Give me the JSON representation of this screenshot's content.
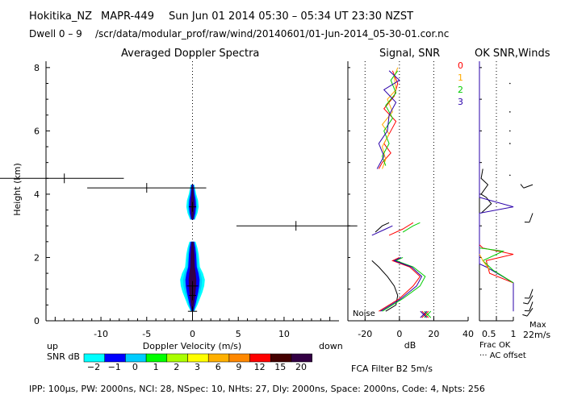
{
  "header": {
    "station": "Hokitika_NZ",
    "radar": "MAPR-449",
    "datetime": "Sun Jun 01 2014 05:30 – 05:34 UT 23:30 NZST",
    "dwell": "Dwell  0 – 9",
    "path": "/scr/data/modular_prof/raw/wind/20140601/01-Jun-2014_05-30-01.cor.nc"
  },
  "footer": "IPP: 100μs,  PW: 2000ns,  NCI: 28,  NSpec: 10, NHts: 27,  Dly: 2000ns,  Space: 2000ns,  Code: 4,  Npts: 256",
  "colors": {
    "snr_minus2": "#00ffff",
    "snr_minus1": "#0000ff",
    "snr_0": "#00ccff",
    "snr_1": "#00ff00",
    "snr_2": "#aaff00",
    "snr_3": "#ffff00",
    "snr_6": "#ffb000",
    "snr_9": "#ff8800",
    "snr_12": "#ff0000",
    "snr_15": "#440000",
    "snr_20": "#330044",
    "beam0": "#ff0000",
    "beam1": "#ffaa00",
    "beam2": "#00cc00",
    "beam3": "#2a00aa",
    "black": "#000000"
  },
  "chart_data": [
    {
      "type": "heatmap",
      "name": "spectra",
      "title": "Averaged Doppler Spectra",
      "xlabel": "Doppler Velocity (m/s)",
      "ylabel": "Height (km)",
      "xlim": [
        -16,
        16
      ],
      "ylim": [
        0,
        8.2
      ],
      "xticks": [
        -10,
        -5,
        0,
        5,
        10
      ],
      "yticks": [
        0,
        2,
        4,
        6,
        8
      ],
      "dir_left": "up",
      "dir_right": "down",
      "colorbar_label": "SNR dB",
      "colorbar_ticks": [
        "−2",
        "−1",
        "0",
        "1",
        "2",
        "3",
        "6",
        "9",
        "12",
        "15",
        "20"
      ],
      "echo_profile": [
        {
          "h": 0.3,
          "w": 0.3
        },
        {
          "h": 0.5,
          "w": 0.8
        },
        {
          "h": 0.7,
          "w": 1.2
        },
        {
          "h": 0.9,
          "w": 1.6
        },
        {
          "h": 1.1,
          "w": 1.9
        },
        {
          "h": 1.3,
          "w": 2.0
        },
        {
          "h": 1.5,
          "w": 1.7
        },
        {
          "h": 1.7,
          "w": 1.2
        },
        {
          "h": 1.9,
          "w": 1.1
        },
        {
          "h": 2.1,
          "w": 1.0
        },
        {
          "h": 2.3,
          "w": 0.8
        },
        {
          "h": 2.5,
          "w": 0.5
        }
      ],
      "upper_echo": [
        {
          "h": 3.2,
          "w": 0.4
        },
        {
          "h": 3.4,
          "w": 0.8
        },
        {
          "h": 3.6,
          "w": 1.0
        },
        {
          "h": 3.8,
          "w": 0.9
        },
        {
          "h": 4.0,
          "w": 0.6
        },
        {
          "h": 4.3,
          "w": 0.3
        }
      ],
      "moments": [
        {
          "h": 4.5,
          "center": -14,
          "left": -26,
          "right": -7.5
        },
        {
          "h": 4.2,
          "center": -5,
          "left": -11.5,
          "right": 1.5
        },
        {
          "h": 3.0,
          "center": 11.3,
          "left": 4.8,
          "right": 18
        },
        {
          "h": 3.6,
          "center": 0,
          "left": -0.4,
          "right": 0.4
        },
        {
          "h": 1.1,
          "center": 0,
          "left": -0.6,
          "right": 0.6
        },
        {
          "h": 0.8,
          "center": 0,
          "left": -0.4,
          "right": 0.4
        },
        {
          "h": 0.3,
          "center": 0,
          "left": -0.5,
          "right": 0.5
        }
      ]
    },
    {
      "type": "line",
      "name": "signal",
      "title": "Signal, SNR",
      "xlabel": "dB",
      "xlim": [
        -30,
        40
      ],
      "ylim": [
        0,
        8.2
      ],
      "xticks": [
        -20,
        0,
        20,
        40
      ],
      "noise_label": "Noise",
      "series": [
        {
          "name": "0",
          "color": "#ff0000",
          "h": [
            4.8,
            5.0,
            5.3,
            5.6,
            5.9,
            6.3,
            6.7,
            7.1,
            7.5,
            7.9
          ],
          "v": [
            -12,
            -10,
            -5,
            -9,
            -6,
            -2,
            -9,
            -3,
            -1,
            -4
          ]
        },
        {
          "name": "1",
          "color": "#ffaa00",
          "h": [
            4.8,
            5.1,
            5.5,
            5.9,
            6.2,
            6.6,
            7.0,
            7.3,
            7.7,
            8.0
          ],
          "v": [
            -10,
            -8,
            -10,
            -6,
            -10,
            -4,
            -7,
            -2,
            -3,
            -1
          ]
        },
        {
          "name": "2",
          "color": "#00cc00",
          "h": [
            4.9,
            5.2,
            5.6,
            6.0,
            6.4,
            6.8,
            7.2,
            7.6,
            7.9
          ],
          "v": [
            -8,
            -10,
            -6,
            -9,
            -4,
            -8,
            -2,
            -5,
            -1
          ]
        },
        {
          "name": "3",
          "color": "#2a00aa",
          "h": [
            4.8,
            5.2,
            5.6,
            6.0,
            6.5,
            6.9,
            7.3,
            7.6,
            7.9
          ],
          "v": [
            -13,
            -9,
            -12,
            -7,
            -6,
            -2,
            -9,
            0,
            -6
          ]
        },
        {
          "name": "noise",
          "color": "#000000",
          "h": [
            0.3,
            0.5,
            0.8,
            1.1,
            1.4,
            1.7,
            1.9
          ],
          "v": [
            -8,
            -2,
            -1,
            -3,
            -7,
            -12,
            -16
          ]
        }
      ],
      "lower_series": [
        {
          "color": "#ff0000",
          "h": [
            0.3,
            0.7,
            1.1,
            1.4,
            1.7,
            1.9,
            2.0
          ],
          "v": [
            -12,
            0,
            8,
            12,
            6,
            -4,
            0
          ]
        },
        {
          "color": "#00cc00",
          "h": [
            0.3,
            0.7,
            1.1,
            1.4,
            1.7,
            1.9,
            2.0
          ],
          "v": [
            -10,
            2,
            12,
            15,
            8,
            -2,
            2
          ]
        },
        {
          "color": "#2a00aa",
          "h": [
            0.3,
            0.7,
            1.1,
            1.4,
            1.7,
            1.9,
            2.0
          ],
          "v": [
            -11,
            1,
            10,
            13,
            7,
            -3,
            1
          ]
        }
      ],
      "mid_series": [
        {
          "color": "#ff0000",
          "h": [
            2.7,
            2.9,
            3.1
          ],
          "v": [
            -6,
            2,
            8
          ]
        },
        {
          "color": "#00cc00",
          "h": [
            2.8,
            3.0,
            3.1
          ],
          "v": [
            2,
            8,
            12
          ]
        },
        {
          "color": "#2a00aa",
          "h": [
            2.7,
            2.9,
            3.0
          ],
          "v": [
            -16,
            -8,
            -4
          ]
        },
        {
          "color": "#000000",
          "h": [
            2.8,
            3.0,
            3.1
          ],
          "v": [
            -14,
            -10,
            -6
          ]
        }
      ]
    },
    {
      "type": "line",
      "name": "winds",
      "title": "OK SNR,Winds",
      "xlabel": "Frac OK",
      "xlabel2": "··· AC offset",
      "max_label": "Max",
      "max_value": "22m/s",
      "xticks": [
        "0.5",
        "1"
      ],
      "beam_labels": [
        "0",
        "1",
        "2",
        "3"
      ],
      "series": [
        {
          "color": "#000000",
          "h": [
            3.4,
            3.7,
            3.9,
            4.0,
            4.3,
            4.5,
            4.8
          ],
          "v": [
            0.05,
            0.35,
            0.2,
            0.05,
            0.25,
            0.05,
            0.1
          ]
        },
        {
          "color": "#2a00aa",
          "h": [
            0.3,
            1.2,
            1.7,
            1.8,
            3.4,
            3.6,
            3.9,
            4.6,
            8.2
          ],
          "v": [
            1.0,
            1.0,
            0.2,
            0.0,
            0.0,
            1.0,
            0.0,
            0.0,
            0.0
          ]
        },
        {
          "color": "#ff0000",
          "h": [
            1.2,
            1.5,
            1.9,
            2.1,
            2.3,
            2.4
          ],
          "v": [
            1.0,
            0.3,
            0.2,
            1.0,
            0.1,
            0.0
          ]
        },
        {
          "color": "#00cc00",
          "h": [
            1.2,
            1.6,
            1.9,
            2.2,
            2.3
          ],
          "v": [
            1.0,
            0.4,
            0.1,
            0.7,
            0.0
          ]
        },
        {
          "color": "#ffaa00",
          "h": [
            1.6,
            1.9,
            2.1
          ],
          "v": [
            0.3,
            0.1,
            0.0
          ]
        }
      ],
      "barbs": [
        {
          "h": 4.3,
          "dir": 250
        },
        {
          "h": 3.4,
          "dir": 200
        },
        {
          "h": 1.0,
          "dir": 200
        },
        {
          "h": 0.8,
          "dir": 210
        },
        {
          "h": 0.6,
          "dir": 200
        },
        {
          "h": 0.4,
          "dir": 215
        }
      ],
      "dots": [
        7.5,
        6.6,
        6.0,
        5.6,
        4.6
      ]
    }
  ]
}
